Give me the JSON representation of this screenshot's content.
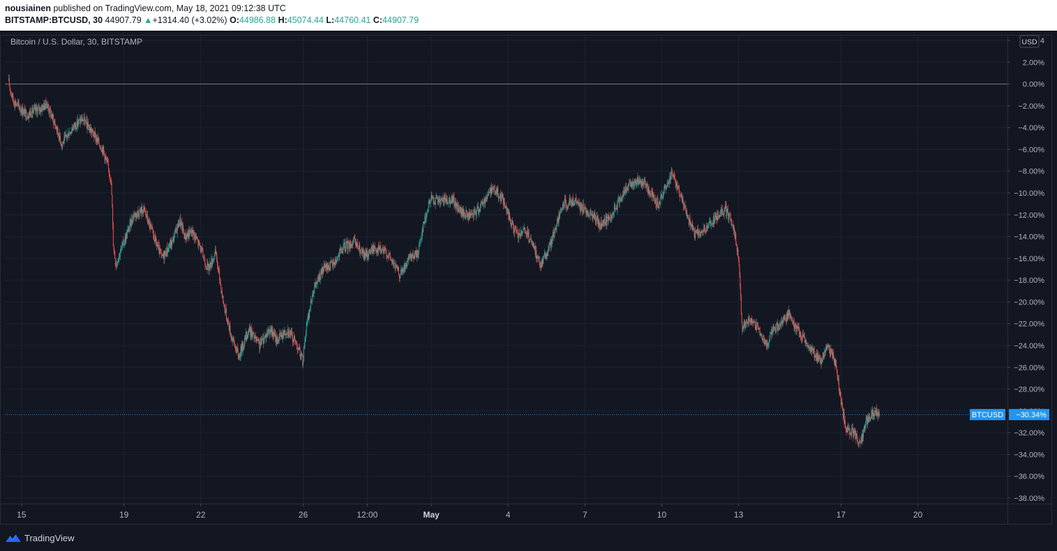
{
  "header": {
    "author": "nousiainen",
    "published": "published on TradingView.com, May 18, 2021 09:12:38 UTC",
    "symbol": "BITSTAMP:BTCUSD, 30",
    "last": "44907.79",
    "change": "+1314.40 (+3.02%)",
    "o_label": "O:",
    "o_value": "44986.88",
    "h_label": "H:",
    "h_value": "45074.44",
    "l_label": "L:",
    "l_value": "44760.41",
    "c_label": "C:",
    "c_value": "44907.79"
  },
  "chart_title": "Bitcoin / U.S. Dollar, 30, BITSTAMP",
  "currency_badge": "USD",
  "last_price_tag": {
    "symbol": "BTCUSD",
    "value": "−30.34%"
  },
  "footer": {
    "brand": "TradingView"
  },
  "colors": {
    "background": "#131722",
    "grid": "#1f2330",
    "up": "#26a69a",
    "down": "#ef5350",
    "axis_text": "#b2b5be",
    "price_line": "#2196f3"
  },
  "chart_data": {
    "type": "candlestick",
    "title": "Bitcoin / U.S. Dollar, 30, BITSTAMP",
    "y_unit": "% change",
    "ylim": [
      -38,
      4
    ],
    "y_ticks": [
      "4",
      "2.00%",
      "0.00%",
      "−2.00%",
      "−4.00%",
      "−6.00%",
      "−8.00%",
      "−10.00%",
      "−12.00%",
      "−14.00%",
      "−16.00%",
      "−18.00%",
      "−20.00%",
      "−22.00%",
      "−24.00%",
      "−26.00%",
      "−28.00%",
      "−30.00%",
      "−32.00%",
      "−34.00%",
      "−36.00%",
      "−38.00%"
    ],
    "y_tick_values": [
      4,
      2,
      0,
      -2,
      -4,
      -6,
      -8,
      -10,
      -12,
      -14,
      -16,
      -18,
      -20,
      -22,
      -24,
      -26,
      -28,
      -30,
      -32,
      -34,
      -36,
      -38
    ],
    "x_ticks": [
      "15",
      "19",
      "22",
      "26",
      "12:00",
      "May",
      "4",
      "7",
      "10",
      "13",
      "17",
      "20"
    ],
    "x_tick_days": [
      0,
      4,
      7,
      11,
      13.5,
      16,
      19,
      22,
      25,
      28,
      32,
      35
    ],
    "x_tick_bold": [
      false,
      false,
      false,
      false,
      false,
      true,
      false,
      false,
      false,
      false,
      false,
      false
    ],
    "x_range_days": [
      -0.65,
      38.5
    ],
    "last_value": -30.34,
    "zero_line": 0,
    "path_key_points": [
      [
        -0.5,
        0.3
      ],
      [
        -0.3,
        -1.5
      ],
      [
        0.2,
        -2.8
      ],
      [
        0.8,
        -2.2
      ],
      [
        1.0,
        -1.8
      ],
      [
        1.3,
        -3.5
      ],
      [
        1.6,
        -5.5
      ],
      [
        2.0,
        -4.0
      ],
      [
        2.4,
        -3.2
      ],
      [
        2.8,
        -4.5
      ],
      [
        3.2,
        -6.0
      ],
      [
        3.5,
        -8.5
      ],
      [
        3.55,
        -10.5
      ],
      [
        3.6,
        -14.5
      ],
      [
        3.7,
        -16.5
      ],
      [
        4.1,
        -14.0
      ],
      [
        4.4,
        -12.0
      ],
      [
        4.8,
        -11.5
      ],
      [
        5.1,
        -13.5
      ],
      [
        5.5,
        -16.0
      ],
      [
        5.9,
        -14.5
      ],
      [
        6.2,
        -12.5
      ],
      [
        6.4,
        -14.0
      ],
      [
        6.7,
        -13.5
      ],
      [
        7.0,
        -15.0
      ],
      [
        7.3,
        -17.0
      ],
      [
        7.6,
        -15.5
      ],
      [
        7.9,
        -20.0
      ],
      [
        8.2,
        -23.0
      ],
      [
        8.5,
        -25.0
      ],
      [
        8.9,
        -22.5
      ],
      [
        9.3,
        -24.0
      ],
      [
        9.7,
        -22.5
      ],
      [
        10.0,
        -23.5
      ],
      [
        10.4,
        -22.5
      ],
      [
        10.8,
        -24.0
      ],
      [
        11.0,
        -25.5
      ],
      [
        11.1,
        -23.0
      ],
      [
        11.4,
        -19.0
      ],
      [
        11.8,
        -17.0
      ],
      [
        12.2,
        -16.5
      ],
      [
        12.6,
        -15.0
      ],
      [
        13.0,
        -14.5
      ],
      [
        13.4,
        -15.8
      ],
      [
        13.8,
        -15.0
      ],
      [
        14.3,
        -15.5
      ],
      [
        14.8,
        -17.5
      ],
      [
        15.2,
        -16.0
      ],
      [
        15.5,
        -15.5
      ],
      [
        15.7,
        -13.0
      ],
      [
        16.0,
        -10.5
      ],
      [
        16.4,
        -10.8
      ],
      [
        16.8,
        -10.5
      ],
      [
        17.2,
        -11.8
      ],
      [
        17.6,
        -12.2
      ],
      [
        18.0,
        -11.0
      ],
      [
        18.4,
        -9.5
      ],
      [
        18.8,
        -10.5
      ],
      [
        19.1,
        -12.5
      ],
      [
        19.4,
        -14.0
      ],
      [
        19.7,
        -13.5
      ],
      [
        20.0,
        -15.0
      ],
      [
        20.3,
        -16.5
      ],
      [
        20.6,
        -15.2
      ],
      [
        20.9,
        -13.0
      ],
      [
        21.2,
        -11.0
      ],
      [
        21.6,
        -10.8
      ],
      [
        22.0,
        -11.5
      ],
      [
        22.3,
        -12.0
      ],
      [
        22.6,
        -13.0
      ],
      [
        22.9,
        -12.5
      ],
      [
        23.2,
        -11.5
      ],
      [
        23.5,
        -10.0
      ],
      [
        23.9,
        -9.0
      ],
      [
        24.3,
        -9.0
      ],
      [
        24.6,
        -10.0
      ],
      [
        24.9,
        -11.0
      ],
      [
        25.2,
        -9.5
      ],
      [
        25.4,
        -8.0
      ],
      [
        25.7,
        -10.0
      ],
      [
        26.0,
        -12.0
      ],
      [
        26.3,
        -13.8
      ],
      [
        26.6,
        -13.5
      ],
      [
        26.9,
        -13.0
      ],
      [
        27.2,
        -12.0
      ],
      [
        27.5,
        -11.5
      ],
      [
        27.8,
        -13.0
      ],
      [
        28.0,
        -15.5
      ],
      [
        28.1,
        -19.0
      ],
      [
        28.15,
        -22.5
      ],
      [
        28.5,
        -21.5
      ],
      [
        28.8,
        -22.5
      ],
      [
        29.1,
        -24.0
      ],
      [
        29.4,
        -22.5
      ],
      [
        29.7,
        -22.0
      ],
      [
        30.0,
        -21.0
      ],
      [
        30.3,
        -22.5
      ],
      [
        30.6,
        -23.5
      ],
      [
        30.9,
        -24.5
      ],
      [
        31.2,
        -25.5
      ],
      [
        31.5,
        -24.0
      ],
      [
        31.8,
        -25.5
      ],
      [
        32.0,
        -29.0
      ],
      [
        32.2,
        -31.5
      ],
      [
        32.5,
        -32.0
      ],
      [
        32.8,
        -33.0
      ],
      [
        33.0,
        -31.0
      ],
      [
        33.3,
        -30.0
      ],
      [
        33.5,
        -30.34
      ]
    ]
  }
}
